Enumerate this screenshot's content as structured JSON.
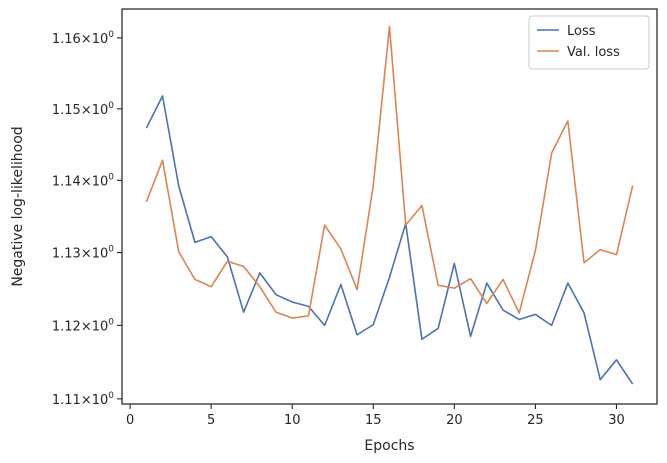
{
  "chart_data": {
    "type": "line",
    "title": "",
    "xlabel": "Epochs",
    "ylabel": "Negative log-likelihood",
    "xlim": [
      -0.5,
      32.5
    ],
    "ylim": [
      1.1093,
      1.1641
    ],
    "x_ticks": [
      0,
      5,
      10,
      15,
      20,
      25,
      30
    ],
    "y_ticks": [
      {
        "value": 1.11,
        "mantissa": "1.11",
        "exp": "0"
      },
      {
        "value": 1.12,
        "mantissa": "1.12",
        "exp": "0"
      },
      {
        "value": 1.13,
        "mantissa": "1.13",
        "exp": "0"
      },
      {
        "value": 1.14,
        "mantissa": "1.14",
        "exp": "0"
      },
      {
        "value": 1.15,
        "mantissa": "1.15",
        "exp": "0"
      },
      {
        "value": 1.16,
        "mantissa": "1.16",
        "exp": "0"
      }
    ],
    "y_scale": "log",
    "grid": false,
    "legend_position": "top-right",
    "x": [
      1,
      2,
      3,
      4,
      5,
      6,
      7,
      8,
      9,
      10,
      11,
      12,
      13,
      14,
      15,
      16,
      17,
      18,
      19,
      20,
      21,
      22,
      23,
      24,
      25,
      26,
      27,
      28,
      29,
      30,
      31
    ],
    "series": [
      {
        "name": "Loss",
        "color": "#4c72b0",
        "values": [
          1.1473,
          1.1518,
          1.1392,
          1.1314,
          1.1322,
          1.1294,
          1.1218,
          1.1272,
          1.1242,
          1.1232,
          1.1226,
          1.12,
          1.1256,
          1.1187,
          1.1201,
          1.1266,
          1.134,
          1.1181,
          1.1196,
          1.1285,
          1.1185,
          1.1258,
          1.1221,
          1.1208,
          1.1215,
          1.12,
          1.1258,
          1.1217,
          1.1126,
          1.1153,
          1.112
        ]
      },
      {
        "name": "Val. loss",
        "color": "#dd8452",
        "values": [
          1.137,
          1.1428,
          1.1301,
          1.1263,
          1.1253,
          1.1288,
          1.1281,
          1.1253,
          1.1218,
          1.121,
          1.1213,
          1.1338,
          1.1305,
          1.1249,
          1.1393,
          1.1616,
          1.1338,
          1.1365,
          1.1255,
          1.1251,
          1.1264,
          1.123,
          1.1263,
          1.1217,
          1.1303,
          1.1438,
          1.1483,
          1.1286,
          1.1304,
          1.1297,
          1.1393
        ]
      }
    ]
  }
}
